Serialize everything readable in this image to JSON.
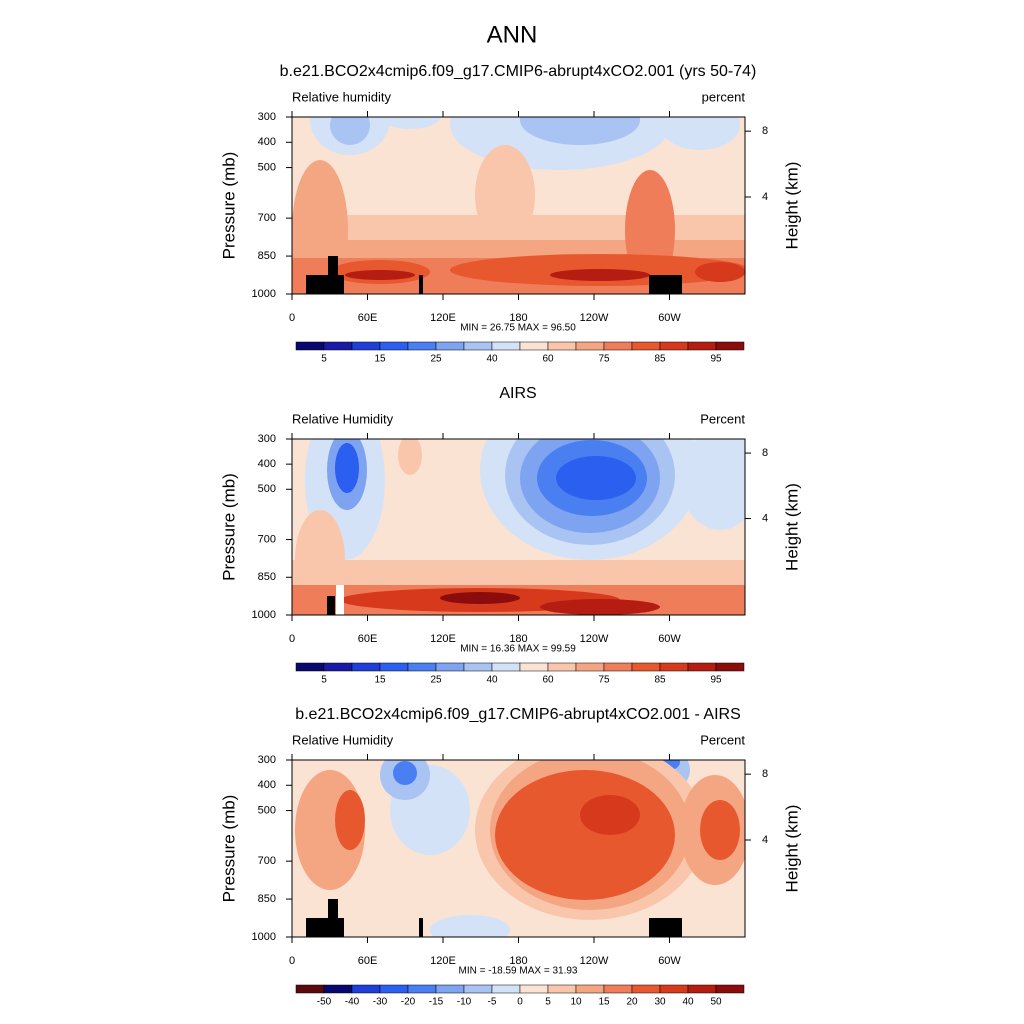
{
  "title": "ANN",
  "panels": [
    {
      "title": "b.e21.BCO2x4cmip6.f09_g17.CMIP6-abrupt4xCO2.001 (yrs 50-74)",
      "left_label": "Relative humidity",
      "right_label": "percent",
      "stats": "MIN =  26.75  MAX =  96.50",
      "y_label": "Pressure (mb)",
      "y2_label": "Height (km)",
      "xlim": [
        0,
        360
      ],
      "xticks": [
        0,
        {
          "value": 60,
          "label": "60E"
        },
        {
          "value": 120,
          "label": "120E"
        },
        180,
        {
          "value": 240,
          "label": "120W"
        },
        {
          "value": 300,
          "label": "60W"
        }
      ],
      "ylim": [
        1000,
        300
      ],
      "yticks": [
        300,
        400,
        500,
        700,
        850,
        1000
      ],
      "y2ticks": [
        4,
        8
      ],
      "colorbar": {
        "labels": [
          5,
          15,
          25,
          40,
          60,
          75,
          85,
          95
        ],
        "colors": [
          "#08086e",
          "#1a1aa6",
          "#1f3fd8",
          "#2a5ff0",
          "#4a7ff2",
          "#7ea3f0",
          "#a9c3f2",
          "#d3e2f7",
          "#fbe3d3",
          "#f9c6ab",
          "#f4a582",
          "#f07d5a",
          "#e8582f",
          "#d7391c",
          "#b51c12",
          "#8a0c0c"
        ]
      }
    },
    {
      "title": "AIRS",
      "left_label": "Relative Humidity",
      "right_label": "Percent",
      "stats": "MIN =  16.36  MAX =  99.59",
      "y_label": "Pressure (mb)",
      "y2_label": "Height (km)",
      "xlim": [
        0,
        360
      ],
      "xticks": [
        0,
        {
          "value": 60,
          "label": "60E"
        },
        {
          "value": 120,
          "label": "120E"
        },
        180,
        {
          "value": 240,
          "label": "120W"
        },
        {
          "value": 300,
          "label": "60W"
        }
      ],
      "ylim": [
        1000,
        300
      ],
      "yticks": [
        300,
        400,
        500,
        700,
        850,
        1000
      ],
      "y2ticks": [
        4,
        8
      ],
      "colorbar": {
        "labels": [
          5,
          15,
          25,
          40,
          60,
          75,
          85,
          95
        ],
        "colors": [
          "#08086e",
          "#1a1aa6",
          "#1f3fd8",
          "#2a5ff0",
          "#4a7ff2",
          "#7ea3f0",
          "#a9c3f2",
          "#d3e2f7",
          "#fbe3d3",
          "#f9c6ab",
          "#f4a582",
          "#f07d5a",
          "#e8582f",
          "#d7391c",
          "#b51c12",
          "#8a0c0c"
        ]
      }
    },
    {
      "title": "b.e21.BCO2x4cmip6.f09_g17.CMIP6-abrupt4xCO2.001 - AIRS",
      "left_label": "Relative Humidity",
      "right_label": "Percent",
      "stats": "MIN = -18.59  MAX =  31.93",
      "y_label": "Pressure (mb)",
      "y2_label": "Height (km)",
      "xlim": [
        0,
        360
      ],
      "xticks": [
        0,
        {
          "value": 60,
          "label": "60E"
        },
        {
          "value": 120,
          "label": "120E"
        },
        180,
        {
          "value": 240,
          "label": "120W"
        },
        {
          "value": 300,
          "label": "60W"
        }
      ],
      "ylim": [
        1000,
        300
      ],
      "yticks": [
        300,
        400,
        500,
        700,
        850,
        1000
      ],
      "y2ticks": [
        4,
        8
      ],
      "colorbar": {
        "labels": [
          -50,
          -40,
          -30,
          -20,
          -15,
          -10,
          -5,
          0,
          5,
          10,
          15,
          20,
          30,
          40,
          50
        ],
        "colors": [
          "#5a0a0a",
          "#08086e",
          "#1f3fd8",
          "#2a5ff0",
          "#4a7ff2",
          "#7ea3f0",
          "#a9c3f2",
          "#d3e2f7",
          "#fbe3d3",
          "#f9c6ab",
          "#f4a582",
          "#f07d5a",
          "#e8582f",
          "#d7391c",
          "#b51c12",
          "#8a0c0c"
        ]
      }
    }
  ]
}
